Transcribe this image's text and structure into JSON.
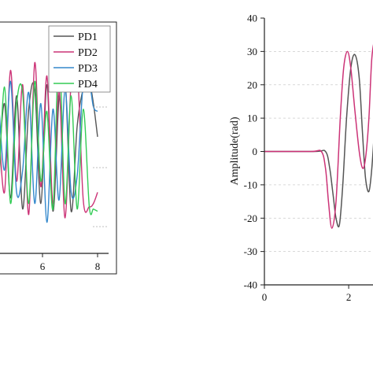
{
  "chart_data": [
    {
      "type": "line",
      "title": "",
      "xlabel": "",
      "ylabel": "",
      "xlim": [
        4.4,
        8.4
      ],
      "ylim": [
        -1.0,
        1.0
      ],
      "grid": false,
      "legend_position": "top-right",
      "x_ticks": [
        "6",
        "8"
      ],
      "legend": [
        "PD1",
        "PD2",
        "PD3",
        "PD4"
      ],
      "series": [
        {
          "name": "PD1",
          "color": "#555555",
          "x": [
            4.4,
            4.62,
            4.84,
            5.06,
            5.28,
            5.5,
            5.72,
            5.94,
            6.16,
            6.38,
            6.6,
            6.82,
            7.04,
            7.26,
            7.48,
            7.7,
            7.85,
            8.0
          ],
          "y": [
            -0.3,
            0.35,
            -0.5,
            0.42,
            -0.6,
            0.3,
            0.48,
            -0.55,
            0.52,
            -0.62,
            0.4,
            0.58,
            -0.62,
            0.15,
            0.48,
            0.53,
            0.35,
            0.05
          ]
        },
        {
          "name": "PD2",
          "color": "#cc3377",
          "x": [
            4.4,
            4.62,
            4.84,
            5.06,
            5.28,
            5.5,
            5.72,
            5.94,
            6.16,
            6.38,
            6.6,
            6.82,
            7.04,
            7.26,
            7.48,
            7.7,
            7.85,
            8.0
          ],
          "y": [
            0.2,
            -0.45,
            0.65,
            -0.35,
            0.52,
            -0.65,
            0.72,
            -0.4,
            0.6,
            -0.55,
            0.48,
            -0.68,
            0.55,
            0.68,
            -0.52,
            -0.58,
            -0.55,
            -0.45
          ]
        },
        {
          "name": "PD3",
          "color": "#3388cc",
          "x": [
            4.4,
            4.62,
            4.84,
            5.06,
            5.28,
            5.5,
            5.72,
            5.94,
            6.16,
            6.38,
            6.6,
            6.82,
            7.04,
            7.26,
            7.48,
            7.7,
            7.85,
            8.0
          ],
          "y": [
            0.4,
            -0.25,
            0.55,
            -0.45,
            -0.25,
            0.45,
            -0.55,
            0.35,
            -0.72,
            0.3,
            -0.52,
            0.48,
            -0.45,
            -0.3,
            0.53,
            0.53,
            0.32,
            0.28
          ]
        },
        {
          "name": "PD4",
          "color": "#33cc55",
          "x": [
            4.4,
            4.62,
            4.84,
            5.06,
            5.28,
            5.5,
            5.72,
            5.94,
            6.16,
            6.38,
            6.6,
            6.82,
            7.04,
            7.26,
            7.48,
            7.7,
            7.85,
            8.0
          ],
          "y": [
            -0.5,
            0.5,
            -0.55,
            0.35,
            0.45,
            -0.55,
            0.55,
            -0.35,
            0.28,
            -0.6,
            0.82,
            -0.55,
            0.42,
            -0.6,
            0.3,
            -0.58,
            -0.6,
            -0.62
          ]
        }
      ]
    },
    {
      "type": "line",
      "title": "",
      "xlabel": "",
      "ylabel": "Amplitude(rad)",
      "xlim": [
        0,
        3.1
      ],
      "ylim": [
        -40,
        40
      ],
      "grid": true,
      "x_ticks": [
        "0",
        "2"
      ],
      "y_ticks": [
        "40",
        "30",
        "20",
        "10",
        "0",
        "-10",
        "-20",
        "-30",
        "-40"
      ],
      "series": [
        {
          "color": "#555555",
          "x": [
            0,
            1.2,
            1.45,
            1.55,
            1.63,
            1.7,
            1.78,
            1.86,
            1.95,
            2.05,
            2.15,
            2.25,
            2.33,
            2.4,
            2.48,
            2.55,
            2.63,
            2.7,
            2.8,
            2.9,
            3.0,
            3.1
          ],
          "y": [
            0,
            0,
            0,
            -5,
            -13,
            -20,
            -22,
            -10,
            10,
            25,
            29,
            22,
            5,
            -8,
            -12,
            -5,
            10,
            20,
            22,
            5,
            -25,
            -32
          ]
        },
        {
          "color": "#cc3377",
          "x": [
            0,
            1.1,
            1.35,
            1.45,
            1.52,
            1.6,
            1.7,
            1.8,
            1.88,
            1.97,
            2.05,
            2.15,
            2.25,
            2.33,
            2.4,
            2.48,
            2.55,
            2.63,
            2.7,
            2.8,
            2.9,
            3.0,
            3.1
          ],
          "y": [
            0,
            0,
            0,
            -5,
            -15,
            -23,
            -15,
            10,
            25,
            30,
            25,
            12,
            0,
            -5,
            -2,
            10,
            28,
            33,
            25,
            -5,
            -28,
            -35,
            -28
          ]
        }
      ]
    }
  ]
}
